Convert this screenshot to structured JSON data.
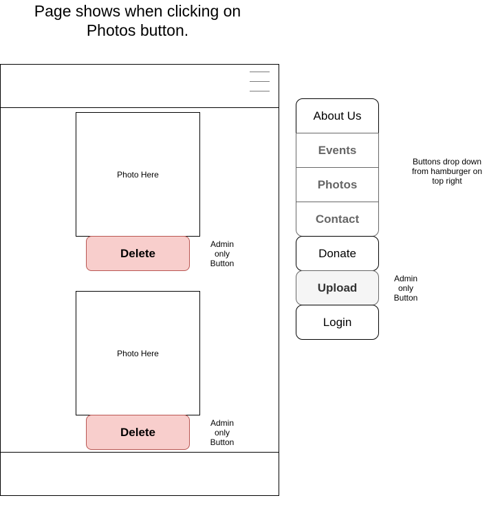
{
  "page_title": "Page shows when clicking on Photos button.",
  "photos": [
    {
      "placeholder": "Photo Here",
      "delete_label": "Delete",
      "admin_note": [
        "Admin",
        "only",
        "Button"
      ]
    },
    {
      "placeholder": "Photo Here",
      "delete_label": "Delete",
      "admin_note": [
        "Admin",
        "only",
        "Button"
      ]
    }
  ],
  "menu": {
    "items": [
      {
        "label": "About Us"
      },
      {
        "label": "Events"
      },
      {
        "label": "Photos"
      },
      {
        "label": "Contact"
      },
      {
        "label": "Donate"
      },
      {
        "label": "Upload"
      },
      {
        "label": "Login"
      }
    ],
    "dropdown_note": [
      "Buttons drop down",
      "from hamburger on",
      "top right"
    ],
    "upload_note": [
      "Admin",
      "only",
      "Button"
    ]
  },
  "colors": {
    "delete_fill": "#f8cecc",
    "delete_border": "#b85450",
    "muted_text": "#666666",
    "upload_fill": "#f5f5f5"
  },
  "icons": {
    "menu_toggle": "hamburger-icon"
  }
}
